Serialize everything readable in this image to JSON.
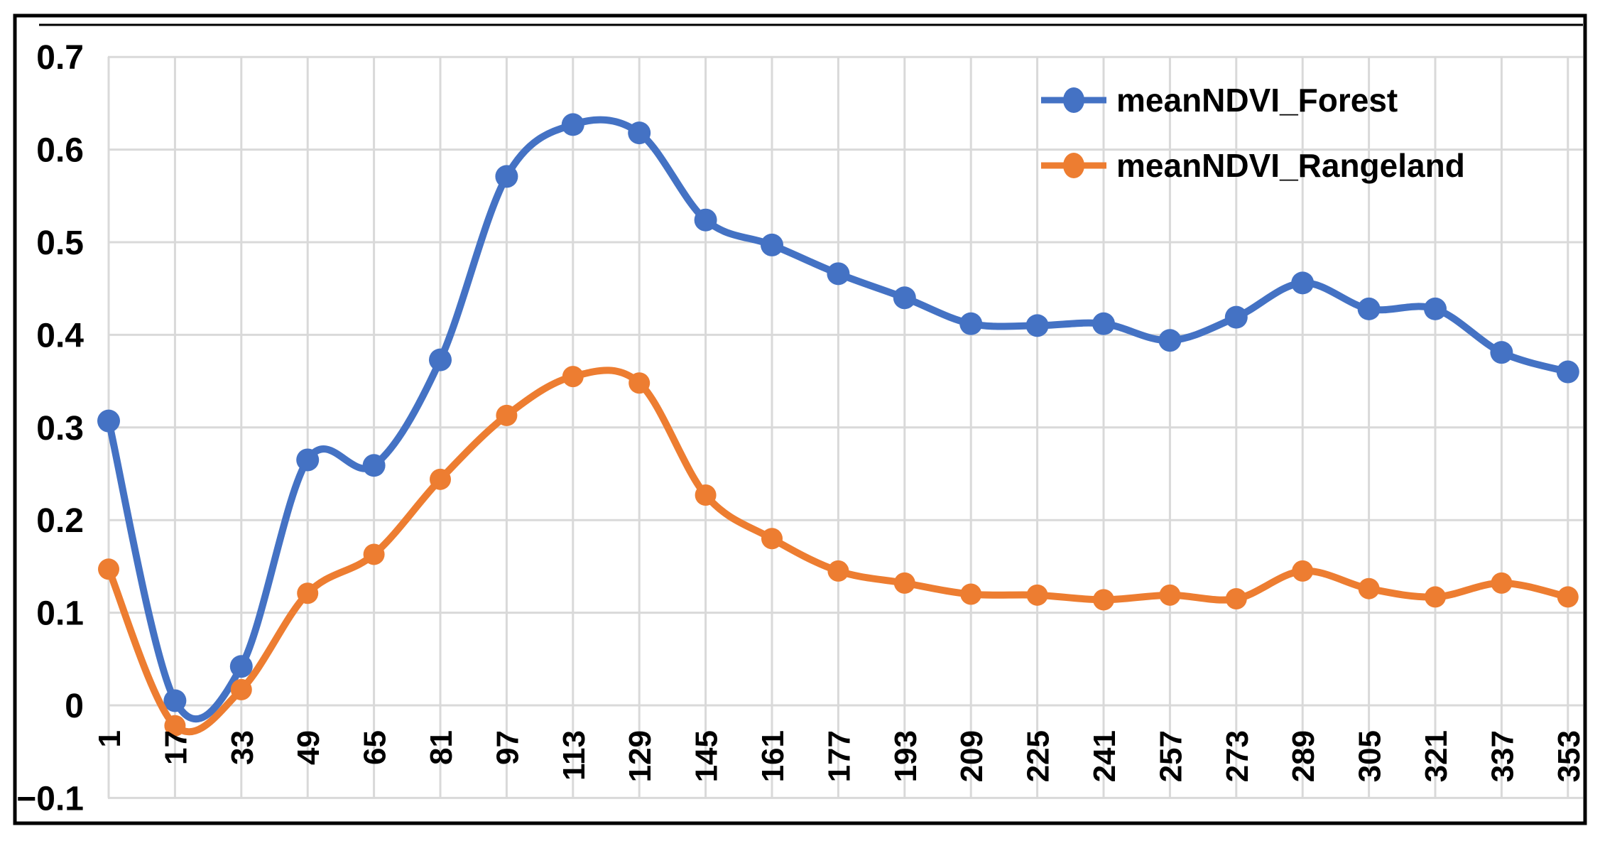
{
  "chart_data": {
    "type": "line",
    "smoothed": true,
    "marker": "circle",
    "title": "",
    "xlabel": "",
    "ylabel": "",
    "grid": true,
    "legend_position": "top-right",
    "categories": [
      1,
      17,
      33,
      49,
      65,
      81,
      97,
      113,
      129,
      145,
      161,
      177,
      193,
      209,
      225,
      241,
      257,
      273,
      289,
      305,
      321,
      337,
      353
    ],
    "x_tick_labels": [
      "1",
      "17",
      "33",
      "49",
      "65",
      "81",
      "97",
      "113",
      "129",
      "145",
      "161",
      "177",
      "193",
      "209",
      "225",
      "241",
      "257",
      "273",
      "289",
      "305",
      "321",
      "337",
      "353"
    ],
    "series": [
      {
        "name": "meanNDVI_Forest",
        "color": "#4472C4",
        "values": [
          0.307,
          0.005,
          0.042,
          0.265,
          0.259,
          0.373,
          0.571,
          0.627,
          0.618,
          0.524,
          0.497,
          0.466,
          0.44,
          0.412,
          0.41,
          0.412,
          0.394,
          0.419,
          0.456,
          0.428,
          0.428,
          0.381,
          0.36
        ]
      },
      {
        "name": "meanNDVI_Rangeland",
        "color": "#ED7D31",
        "values": [
          0.147,
          -0.022,
          0.017,
          0.121,
          0.163,
          0.244,
          0.313,
          0.355,
          0.348,
          0.227,
          0.18,
          0.145,
          0.132,
          0.12,
          0.119,
          0.114,
          0.119,
          0.115,
          0.145,
          0.126,
          0.117,
          0.132,
          0.117
        ]
      }
    ],
    "ylim": [
      -0.1,
      0.7
    ],
    "y_tick_values": [
      0.7,
      0.6,
      0.5,
      0.4,
      0.3,
      0.2,
      0.1,
      0,
      -0.1
    ],
    "y_tick_labels": [
      "0.7",
      "0.6",
      "0.5",
      "0.4",
      "0.3",
      "0.2",
      "0.1",
      "0",
      "−0.1"
    ]
  },
  "legend": {
    "items": [
      {
        "label": "meanNDVI_Forest"
      },
      {
        "label": "meanNDVI_Rangeland"
      }
    ]
  },
  "colors": {
    "forest_line": "#4472C4",
    "rangeland_line": "#ED7D31",
    "gridline": "#D9D9D9",
    "frame": "#000000",
    "background": "#FFFFFF",
    "tick_text": "#000000"
  }
}
